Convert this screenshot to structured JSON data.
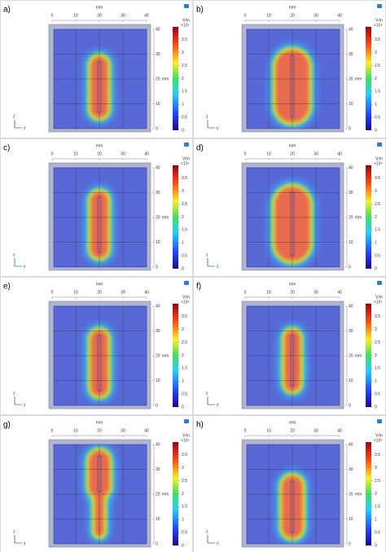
{
  "panels": [
    {
      "label": "a)"
    },
    {
      "label": "b)"
    },
    {
      "label": "c)"
    },
    {
      "label": "d)"
    },
    {
      "label": "e)"
    },
    {
      "label": "f)"
    },
    {
      "label": "g)"
    },
    {
      "label": "h)"
    }
  ],
  "axes": {
    "x_label": "mm",
    "y_label": "mm",
    "xticks": [
      0,
      10,
      20,
      30,
      40
    ],
    "yticks": [
      0,
      10,
      20,
      30,
      40
    ],
    "xlim": [
      0,
      40
    ],
    "ylim": [
      0,
      40
    ]
  },
  "colorbar": {
    "unit": "V/m",
    "multiplier": "×10⁴",
    "range": [
      0,
      4
    ],
    "ticks": [
      0,
      0.5,
      1,
      1.5,
      2,
      2.5,
      3,
      3.5
    ]
  },
  "triad": {
    "z": "z",
    "y": "y"
  }
}
